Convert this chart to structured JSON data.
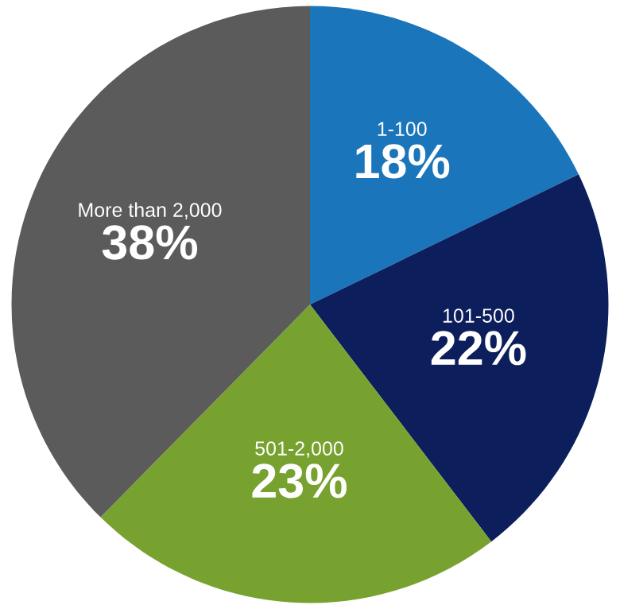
{
  "chart_data": {
    "type": "pie",
    "categories": [
      "1-100",
      "101-500",
      "501-2,000",
      "More than 2,000"
    ],
    "values": [
      18,
      22,
      23,
      38
    ],
    "colors": [
      "#1b75bb",
      "#0c1f5c",
      "#78a22f",
      "#5b5b5b"
    ],
    "value_labels": [
      "18%",
      "22%",
      "23%",
      "38%"
    ]
  }
}
